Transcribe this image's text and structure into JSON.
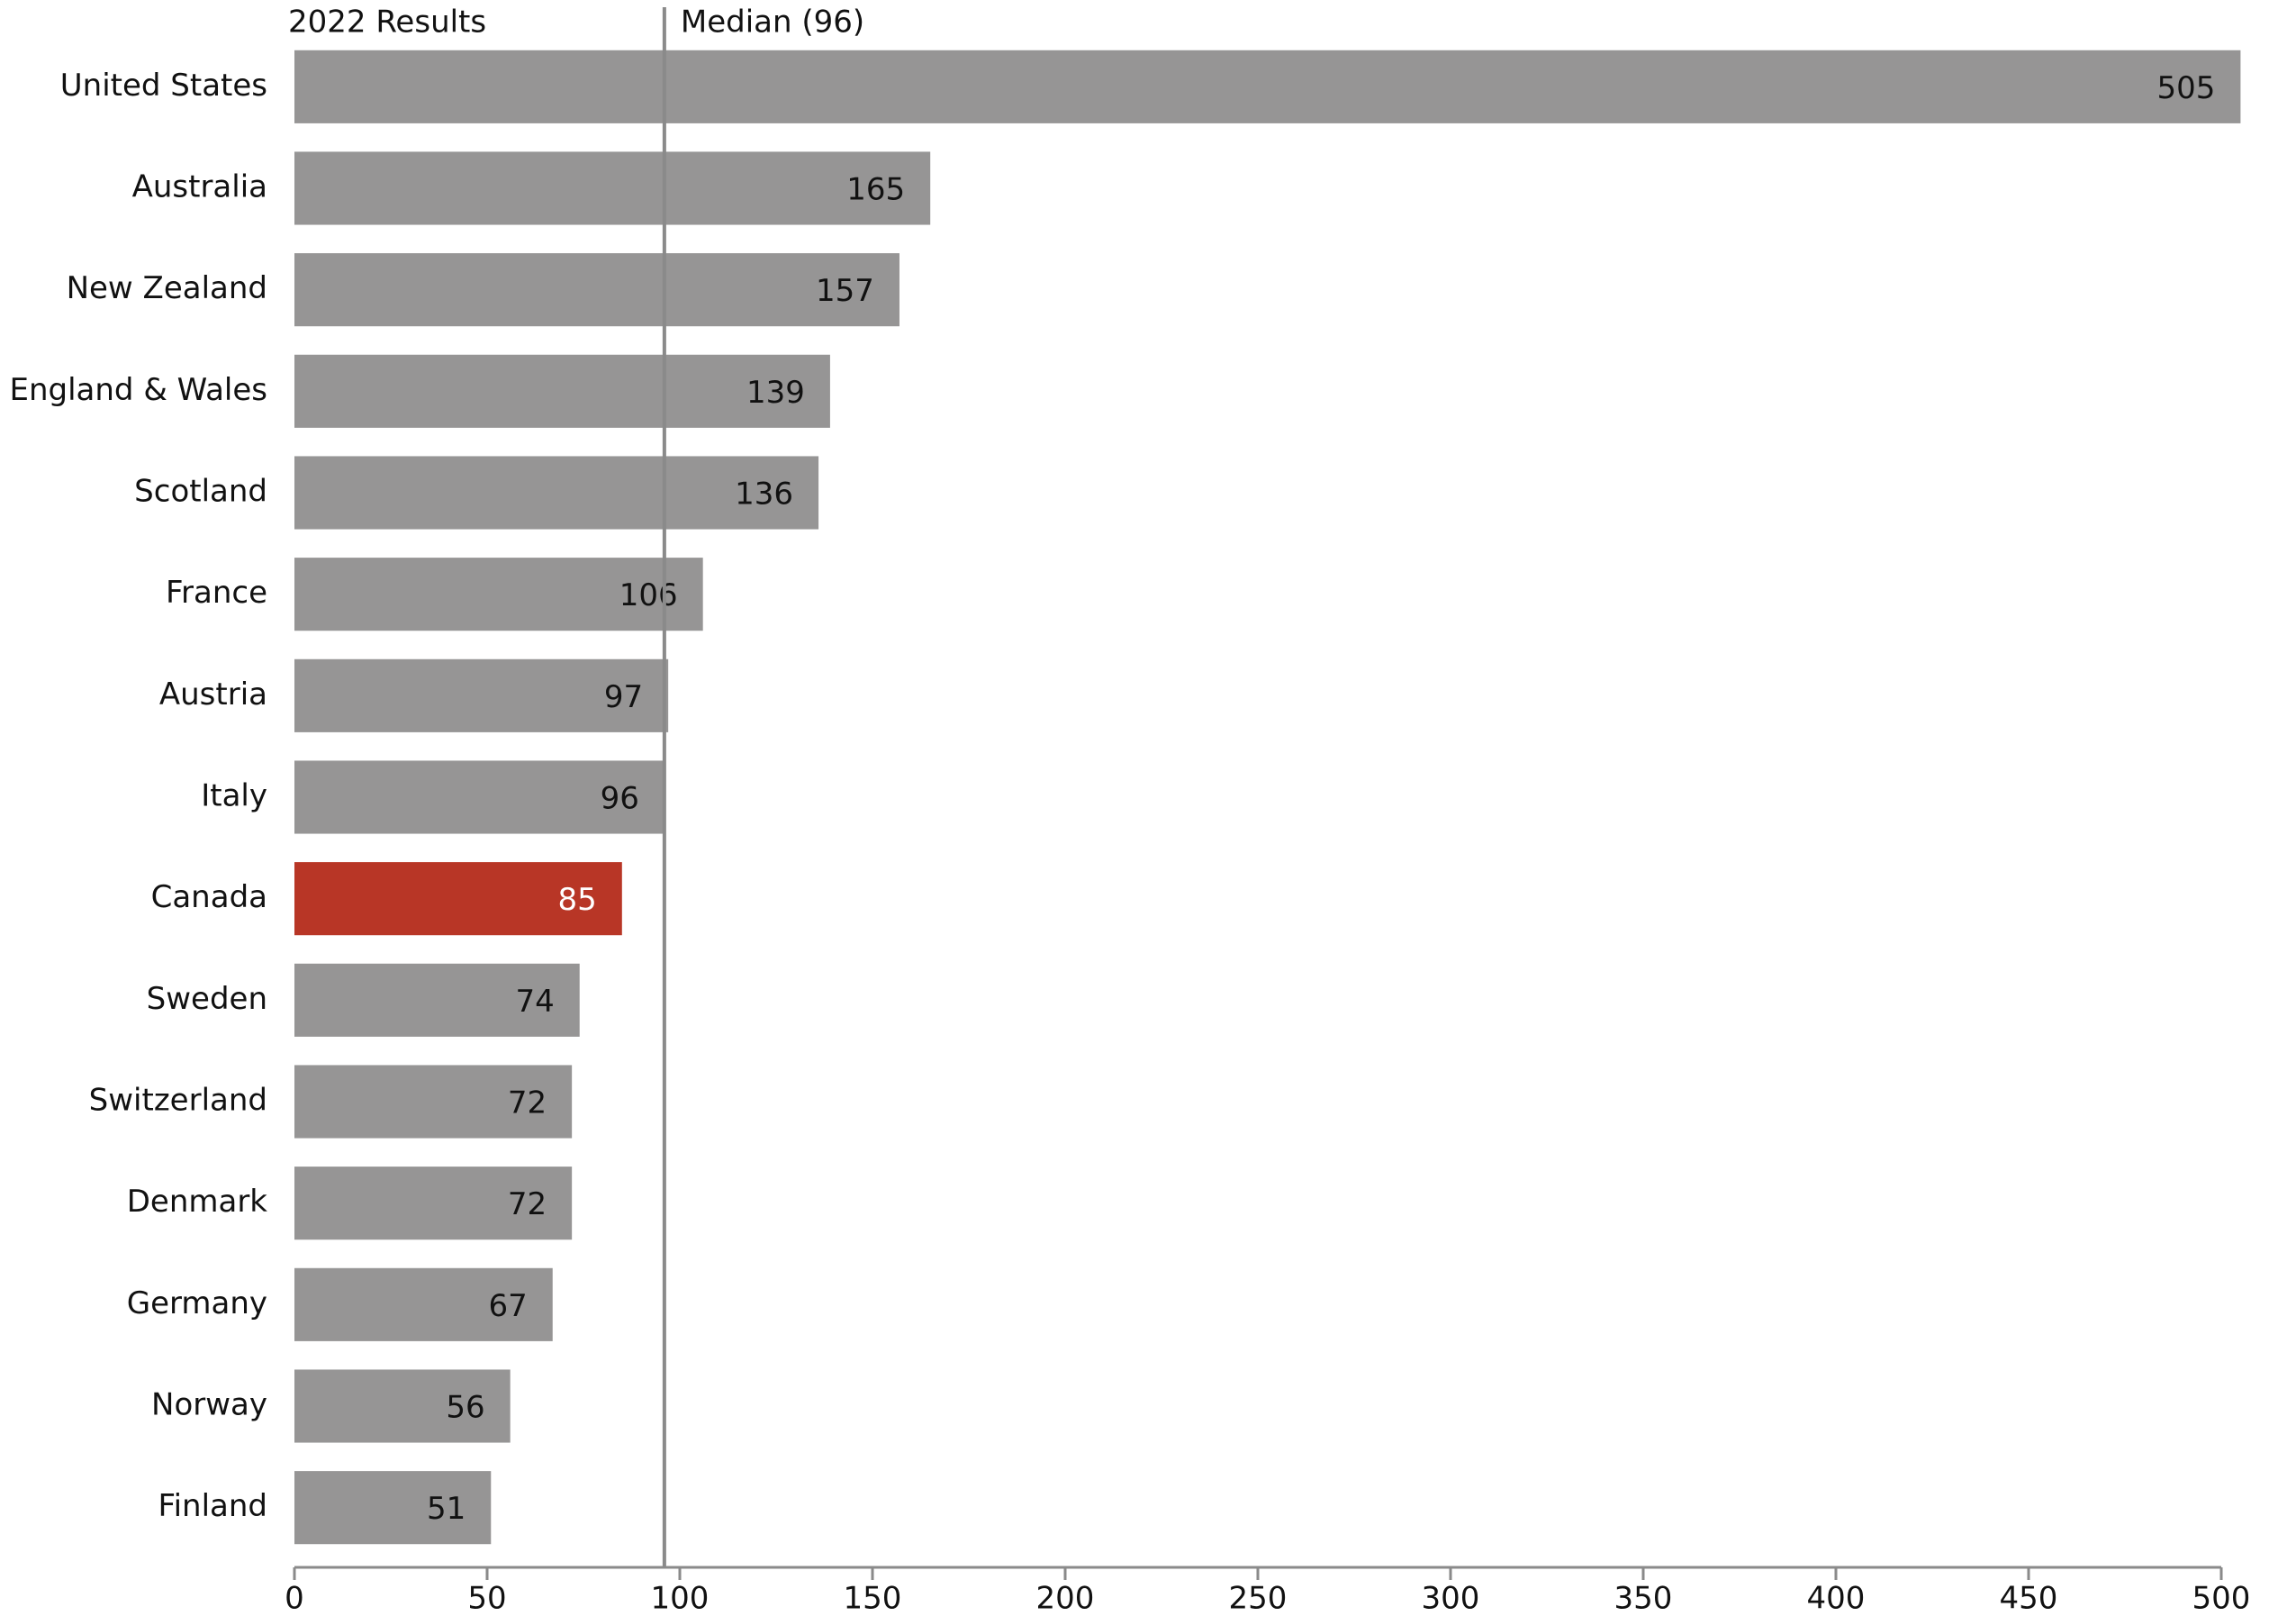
{
  "chart_data": {
    "type": "barh",
    "header_label": "2022 Results",
    "median": 96,
    "median_label": "Median (96)",
    "categories": [
      "United States",
      "Australia",
      "New Zealand",
      "England & Wales",
      "Scotland",
      "France",
      "Austria",
      "Italy",
      "Canada",
      "Sweden",
      "Switzerland",
      "Denmark",
      "Germany",
      "Norway",
      "Finland"
    ],
    "values": [
      505,
      165,
      157,
      139,
      136,
      106,
      97,
      96,
      85,
      74,
      72,
      72,
      67,
      56,
      51
    ],
    "color": "#969595",
    "colors": [
      "#969595",
      "#969595",
      "#969595",
      "#969595",
      "#969595",
      "#969595",
      "#969595",
      "#969595",
      "#b83626",
      "#969595",
      "#969595",
      "#969595",
      "#969595",
      "#969595",
      "#969595"
    ],
    "xlim": [
      0,
      500
    ],
    "xticks": [
      0,
      50,
      100,
      150,
      200,
      250,
      300,
      350,
      400,
      450,
      500
    ]
  }
}
